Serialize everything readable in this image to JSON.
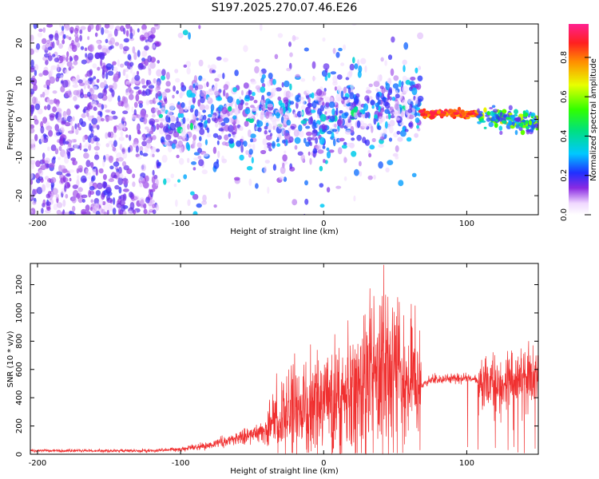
{
  "title": "S197.2025.270.07.46.E26",
  "chart_data": [
    {
      "type": "heatmap",
      "name": "spectrogram",
      "xlabel": "Height of straight line (km)",
      "ylabel": "Frequency (Hz)",
      "xlim": [
        -205,
        150
      ],
      "ylim": [
        -25,
        25
      ],
      "xticks": [
        -200,
        -100,
        0,
        100
      ],
      "yticks": [
        -20,
        -10,
        0,
        10,
        20
      ],
      "colorbar": {
        "label": "Normalized spectral amplitude",
        "range": [
          0.0,
          0.97
        ],
        "ticks": [
          0.0,
          0.2,
          0.4,
          0.6,
          0.8
        ],
        "colormap": "hsv-rainbow"
      },
      "features": [
        {
          "x_range": [
            -205,
            -115
          ],
          "freq_center": 0,
          "freq_spread": 25,
          "amplitude": 0.15,
          "description": "diffuse scattered noise"
        },
        {
          "x_range": [
            -115,
            68
          ],
          "freq_center": 0,
          "freq_spread": 8,
          "amplitude": 0.3,
          "description": "broadband cluster"
        },
        {
          "x_range": [
            68,
            108
          ],
          "freq_center": 1.5,
          "freq_spread": 1,
          "amplitude": 0.9,
          "description": "narrow high-amplitude line"
        },
        {
          "x_range": [
            108,
            150
          ],
          "freq_center": 0,
          "freq_spread": 2,
          "amplitude": 0.5,
          "description": "narrow line, declining"
        }
      ]
    },
    {
      "type": "line",
      "name": "snr",
      "xlabel": "Height of straight line (km)",
      "ylabel": "SNR (10 * v/v)",
      "xlim": [
        -205,
        150
      ],
      "ylim": [
        0,
        1350
      ],
      "xticks": [
        -200,
        -100,
        0,
        100
      ],
      "yticks": [
        0,
        200,
        400,
        600,
        800,
        1000,
        1200
      ],
      "color": "#f03030",
      "envelope": [
        {
          "x": -205,
          "y": 25
        },
        {
          "x": -120,
          "y": 25
        },
        {
          "x": -100,
          "y": 35
        },
        {
          "x": -80,
          "y": 65
        },
        {
          "x": -60,
          "y": 110
        },
        {
          "x": -40,
          "y": 180
        },
        {
          "x": -30,
          "y": 260
        },
        {
          "x": -20,
          "y": 320
        },
        {
          "x": 0,
          "y": 330
        },
        {
          "x": 20,
          "y": 440
        },
        {
          "x": 35,
          "y": 520
        },
        {
          "x": 50,
          "y": 480
        },
        {
          "x": 65,
          "y": 460
        },
        {
          "x": 75,
          "y": 530
        },
        {
          "x": 100,
          "y": 540
        },
        {
          "x": 120,
          "y": 480
        },
        {
          "x": 140,
          "y": 560
        },
        {
          "x": 150,
          "y": 600
        }
      ],
      "peak": {
        "x": 42,
        "y": 1340
      }
    }
  ]
}
